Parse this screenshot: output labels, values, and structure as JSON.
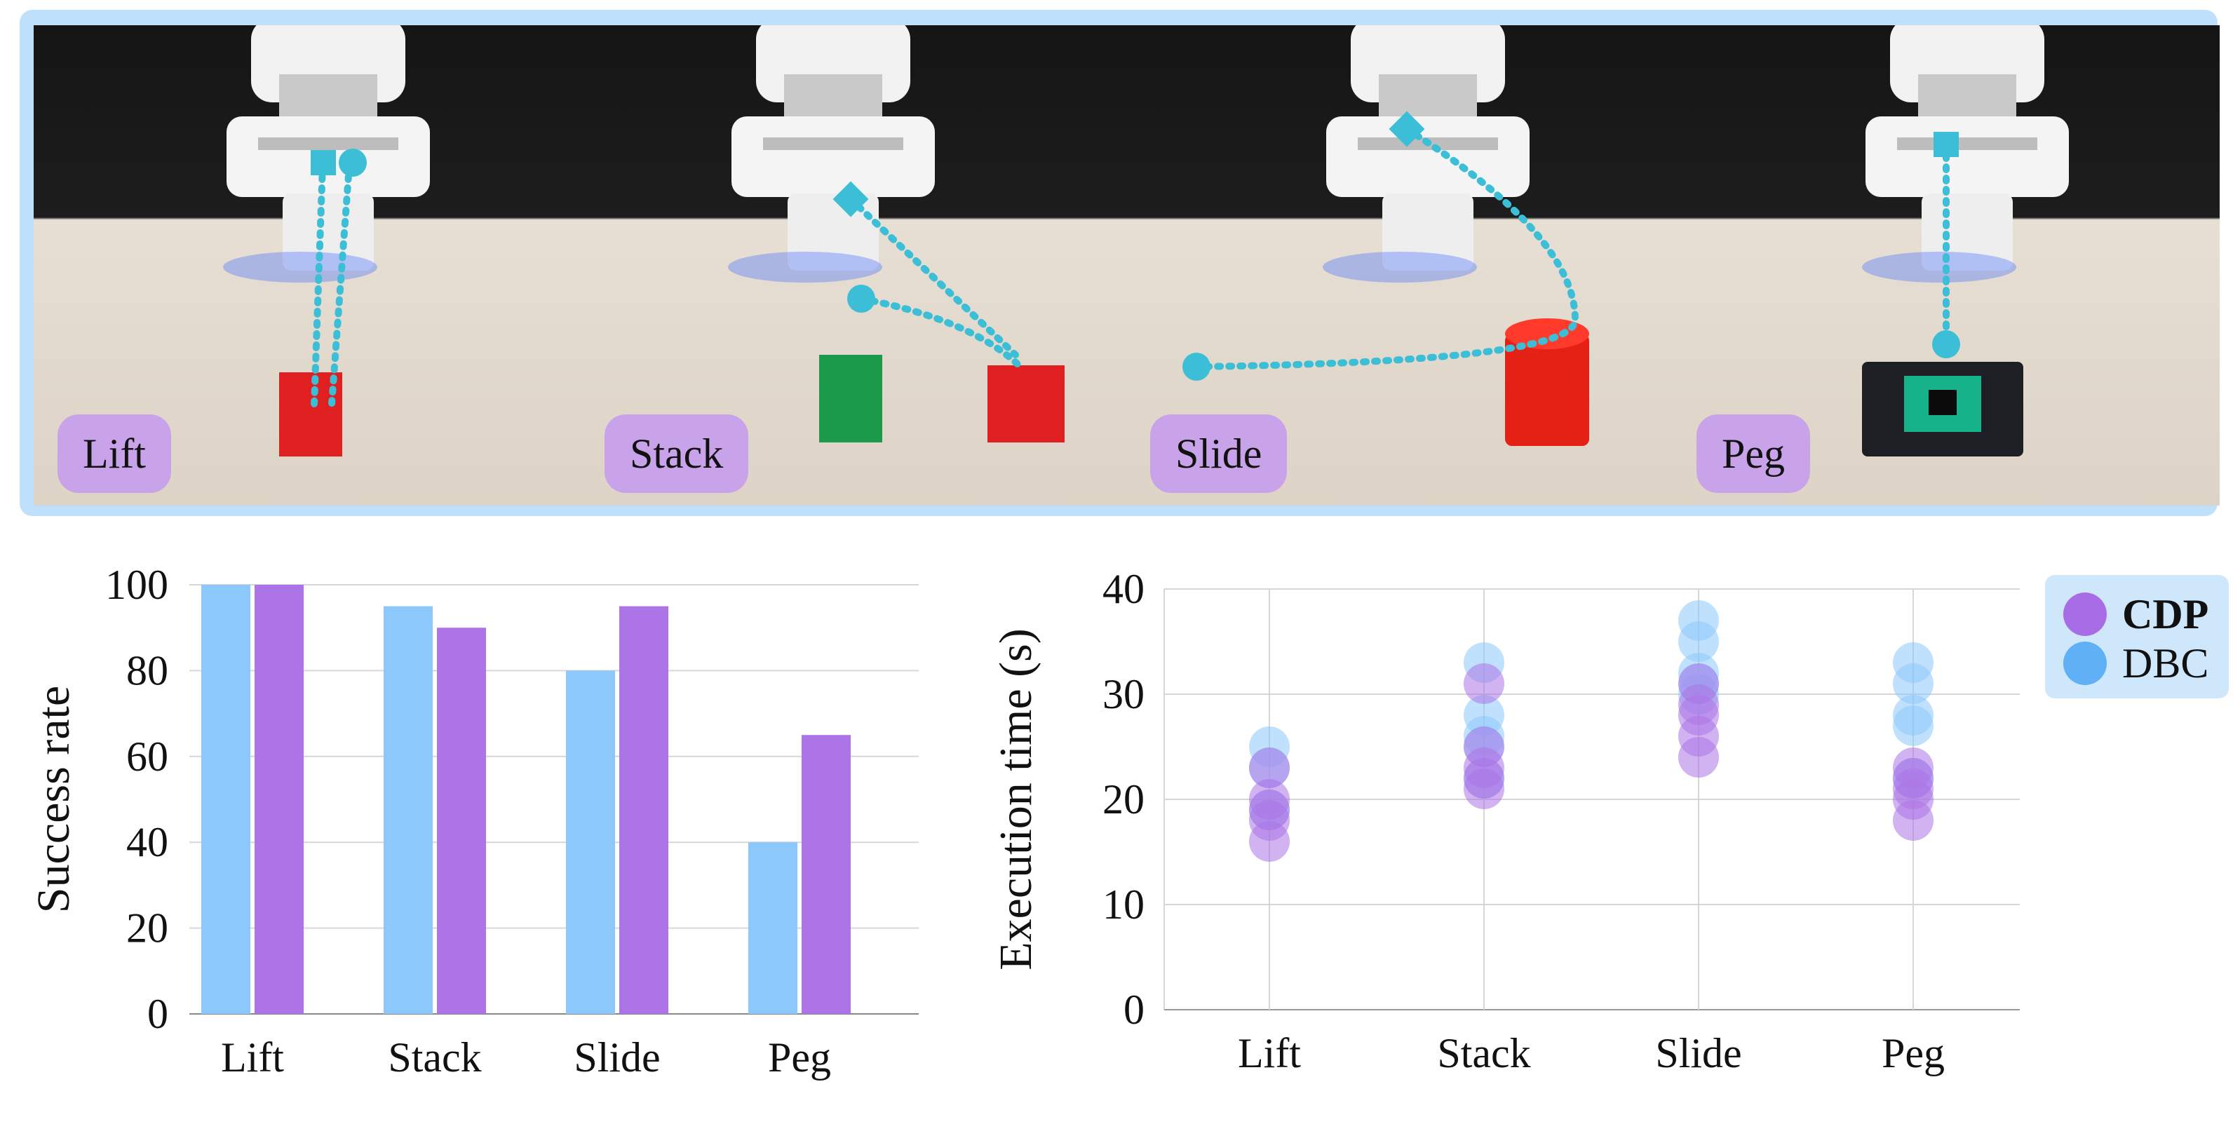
{
  "panels": [
    {
      "label": "Lift",
      "trajectory": "vertical"
    },
    {
      "label": "Stack",
      "trajectory": "pick-and-place"
    },
    {
      "label": "Slide",
      "trajectory": "arc"
    },
    {
      "label": "Peg",
      "trajectory": "vertical"
    }
  ],
  "legend": {
    "items": [
      {
        "label": "CDP",
        "color": "#a86de6",
        "bold": true
      },
      {
        "label": "DBC",
        "color": "#5fb0f5",
        "bold": false
      }
    ]
  },
  "colors": {
    "dbc": "#8cc8fb",
    "cdp": "#ac74e6",
    "trajectory": "#3cbfd6",
    "strip_border": "#bfe0fb",
    "badge": "#c9a3ea"
  },
  "chart_data": [
    {
      "type": "bar",
      "ylabel": "Success rate",
      "categories": [
        "Lift",
        "Stack",
        "Slide",
        "Peg"
      ],
      "ylim": [
        0,
        100
      ],
      "yticks": [
        0,
        20,
        40,
        60,
        80,
        100
      ],
      "grid": "horizontal",
      "series": [
        {
          "name": "DBC",
          "values": [
            100,
            95,
            80,
            40
          ]
        },
        {
          "name": "CDP",
          "values": [
            100,
            90,
            95,
            65
          ]
        }
      ]
    },
    {
      "type": "scatter",
      "ylabel": "Execution time (s)",
      "categories": [
        "Lift",
        "Stack",
        "Slide",
        "Peg"
      ],
      "ylim": [
        0,
        40
      ],
      "yticks": [
        0,
        10,
        20,
        30,
        40
      ],
      "grid": "both",
      "legend_position": "top-right",
      "series": [
        {
          "name": "DBC",
          "values": [
            [
              25,
              23,
              19
            ],
            [
              33,
              28,
              26,
              25,
              22
            ],
            [
              37,
              35,
              32,
              31,
              30
            ],
            [
              33,
              31,
              28,
              27,
              22
            ]
          ]
        },
        {
          "name": "CDP",
          "values": [
            [
              23,
              20,
              19,
              18,
              16
            ],
            [
              31,
              25,
              23,
              22,
              21
            ],
            [
              31,
              29,
              28,
              26,
              24
            ],
            [
              23,
              22,
              21,
              20,
              18
            ]
          ]
        }
      ]
    }
  ]
}
